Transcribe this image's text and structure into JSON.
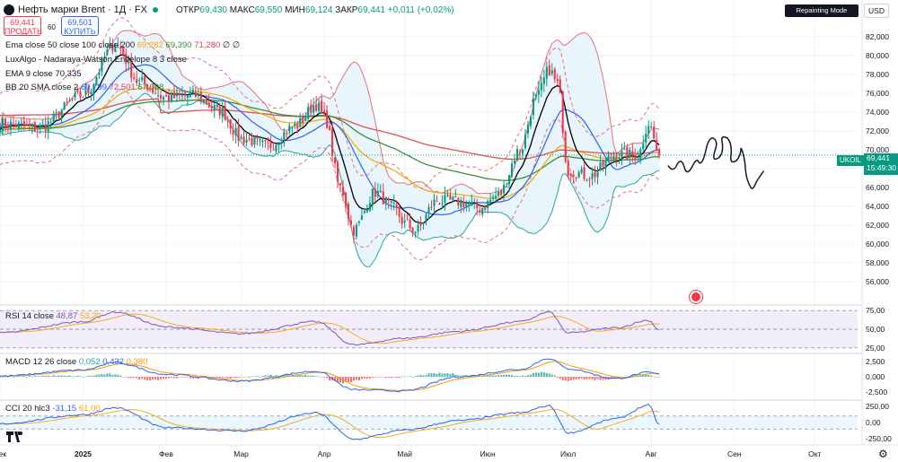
{
  "header": {
    "title": "Нефть марки Brent · 1Д · FX",
    "ohlc": {
      "open_label": "ОТКР",
      "open": "69,430",
      "high_label": "МАКС",
      "high": "69,550",
      "low_label": "МИН",
      "low": "69,124",
      "close_label": "ЗАКР",
      "close": "69,441",
      "change": "+0,011 (+0,02%)"
    },
    "sell": {
      "price": "69,441",
      "label": "ПРОДАТЬ"
    },
    "spread": "60",
    "buy": {
      "price": "69,501",
      "label": "КУПИТЬ"
    }
  },
  "legends": {
    "ema": {
      "label": "Ema close 50 close 100 close 200",
      "v1": "69,282",
      "v2": "69,390",
      "v3": "71,280",
      "tail": "∅ ∅"
    },
    "lux": {
      "label": "LuxAlgo - Nadaraya-Watson Envelope 8 3 close"
    },
    "ema9": {
      "label": "EMA 9 close",
      "value": "70,335"
    },
    "bb": {
      "label": "BB 20 SMA close 2",
      "v1": "69,799",
      "v2": "72,501",
      "v3": "67,098"
    },
    "rsi": {
      "label": "RSI 14 close",
      "v1": "48,87",
      "v2": "53,20"
    },
    "macd": {
      "label": "MACD 12 26 close",
      "v1": "0,052",
      "v2": "0,432",
      "v3": "0,380"
    },
    "cci": {
      "label": "CCI 20 hlc3",
      "v1": "-31,15",
      "v2": "61,00"
    }
  },
  "badges": {
    "repaint": "Repainting Mode Enabled",
    "currency": "USD"
  },
  "price_tag": {
    "symbol": "UKOIL",
    "price": "69,441",
    "countdown": "15:49:30"
  },
  "colors": {
    "up": "#089981",
    "down": "#f23645",
    "ema9": "#000000",
    "ema50": "#f7a600",
    "ema100": "#388e3c",
    "ema200": "#e05050",
    "bb_basis": "#2962ff",
    "envelope": "#e57373",
    "bb_fill": "#e3f2fd",
    "rsi": "#7e57c2",
    "macd": "#2962ff",
    "signal": "#ff9800",
    "cci": "#2962ff"
  },
  "chart_data": [
    {
      "type": "candlestick",
      "title": "Нефть марки Brent · 1Д · FX",
      "ylim": [
        54,
        84
      ],
      "yticks": [
        "56,000",
        "58,000",
        "60,000",
        "62,000",
        "64,000",
        "66,000",
        "68,000",
        "70,000",
        "72,000",
        "74,000",
        "76,000",
        "78,000",
        "80,000",
        "82,000"
      ],
      "xticks": [
        "Дек",
        "2025",
        "Фев",
        "Мар",
        "Апр",
        "Май",
        "Июн",
        "Июл",
        "Авг",
        "Сен",
        "Окт"
      ],
      "xtick_days": [
        0,
        31,
        62,
        90,
        121,
        151,
        182,
        212,
        243,
        274,
        304
      ],
      "total_days": 320,
      "close_keypoints": [
        {
          "day": 0,
          "close": 72.8
        },
        {
          "day": 14,
          "close": 72.3
        },
        {
          "day": 31,
          "close": 75.8
        },
        {
          "day": 43,
          "close": 81.2
        },
        {
          "day": 52,
          "close": 77.2
        },
        {
          "day": 62,
          "close": 75.5
        },
        {
          "day": 72,
          "close": 75.8
        },
        {
          "day": 82,
          "close": 74.2
        },
        {
          "day": 90,
          "close": 71.2
        },
        {
          "day": 100,
          "close": 70.4
        },
        {
          "day": 110,
          "close": 72.5
        },
        {
          "day": 118,
          "close": 74.8
        },
        {
          "day": 121,
          "close": 73.5
        },
        {
          "day": 127,
          "close": 66.0
        },
        {
          "day": 132,
          "close": 61.5
        },
        {
          "day": 140,
          "close": 65.5
        },
        {
          "day": 147,
          "close": 63.8
        },
        {
          "day": 151,
          "close": 62.2
        },
        {
          "day": 155,
          "close": 61.4
        },
        {
          "day": 163,
          "close": 64.6
        },
        {
          "day": 171,
          "close": 64.5
        },
        {
          "day": 179,
          "close": 63.8
        },
        {
          "day": 186,
          "close": 65.2
        },
        {
          "day": 194,
          "close": 70.0
        },
        {
          "day": 200,
          "close": 75.5
        },
        {
          "day": 205,
          "close": 78.5
        },
        {
          "day": 208,
          "close": 77.0
        },
        {
          "day": 212,
          "close": 67.8
        },
        {
          "day": 220,
          "close": 67.2
        },
        {
          "day": 230,
          "close": 69.5
        },
        {
          "day": 238,
          "close": 69.4
        },
        {
          "day": 242,
          "close": 72.8
        },
        {
          "day": 246,
          "close": 69.441
        }
      ],
      "last_price": "69,441"
    },
    {
      "type": "line",
      "title": "RSI 14 close",
      "yticks": [
        "75,00",
        "50,00",
        "25,00"
      ],
      "ylim": [
        20,
        80
      ],
      "series": [
        {
          "name": "RSI",
          "keypoints": [
            {
              "day": 0,
              "value": 45
            },
            {
              "day": 31,
              "value": 60
            },
            {
              "day": 43,
              "value": 73
            },
            {
              "day": 62,
              "value": 53
            },
            {
              "day": 90,
              "value": 44
            },
            {
              "day": 118,
              "value": 60
            },
            {
              "day": 132,
              "value": 29
            },
            {
              "day": 151,
              "value": 38
            },
            {
              "day": 171,
              "value": 47
            },
            {
              "day": 194,
              "value": 60
            },
            {
              "day": 205,
              "value": 73
            },
            {
              "day": 212,
              "value": 45
            },
            {
              "day": 230,
              "value": 52
            },
            {
              "day": 242,
              "value": 62
            },
            {
              "day": 246,
              "value": 48.87
            }
          ]
        }
      ]
    },
    {
      "type": "line",
      "title": "MACD 12 26 close",
      "yticks": [
        "2,500",
        "0,000",
        "-2,500"
      ],
      "ylim": [
        -3.5,
        3.5
      ],
      "series": [
        {
          "name": "MACD",
          "keypoints": [
            {
              "day": 0,
              "value": 0.1
            },
            {
              "day": 31,
              "value": 1.1
            },
            {
              "day": 43,
              "value": 2.3
            },
            {
              "day": 62,
              "value": 0.4
            },
            {
              "day": 90,
              "value": -0.7
            },
            {
              "day": 118,
              "value": 0.9
            },
            {
              "day": 132,
              "value": -2.1
            },
            {
              "day": 151,
              "value": -2.3
            },
            {
              "day": 171,
              "value": 0.0
            },
            {
              "day": 194,
              "value": 1.2
            },
            {
              "day": 205,
              "value": 3.0
            },
            {
              "day": 212,
              "value": 1.3
            },
            {
              "day": 230,
              "value": -0.3
            },
            {
              "day": 242,
              "value": 0.7
            },
            {
              "day": 246,
              "value": 0.432
            }
          ]
        }
      ]
    },
    {
      "type": "line",
      "title": "CCI 20 hlc3",
      "yticks": [
        "250,00",
        "0,00",
        "-250,00"
      ],
      "ylim": [
        -320,
        320
      ],
      "series": [
        {
          "name": "CCI",
          "keypoints": [
            {
              "day": 0,
              "value": -20
            },
            {
              "day": 31,
              "value": 120
            },
            {
              "day": 43,
              "value": 230
            },
            {
              "day": 62,
              "value": -80
            },
            {
              "day": 90,
              "value": -130
            },
            {
              "day": 118,
              "value": 150
            },
            {
              "day": 132,
              "value": -260
            },
            {
              "day": 151,
              "value": -120
            },
            {
              "day": 171,
              "value": 30
            },
            {
              "day": 194,
              "value": 150
            },
            {
              "day": 205,
              "value": 260
            },
            {
              "day": 212,
              "value": -160
            },
            {
              "day": 230,
              "value": 60
            },
            {
              "day": 242,
              "value": 270
            },
            {
              "day": 246,
              "value": -31.15
            }
          ]
        }
      ]
    }
  ]
}
